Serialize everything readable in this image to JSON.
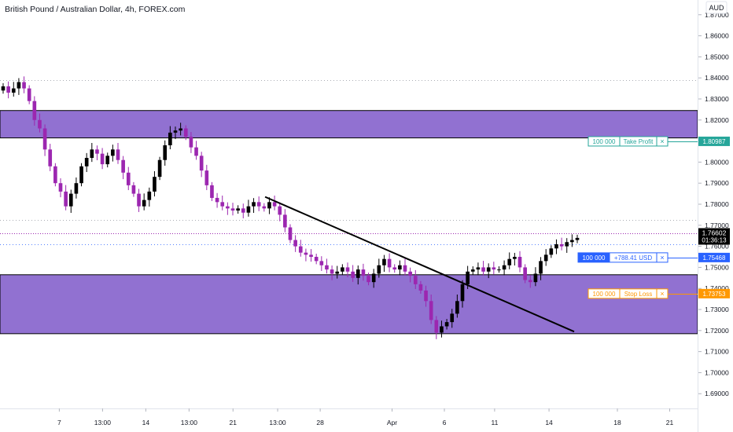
{
  "header": {
    "title": "British Pound / Australian Dollar, 4h, FOREX.com",
    "currency_badge": "AUD"
  },
  "colors": {
    "up_candle": "#000000",
    "down_candle": "#9c27b0",
    "zone_fill": "#8b69cf",
    "take_profit": "#26a69a",
    "stop_loss": "#ff9800",
    "position": "#2962ff",
    "price_tag": "#000000"
  },
  "chart_data": {
    "type": "candlestick",
    "instrument": "British Pound / Australian Dollar",
    "timeframe": "4h",
    "source": "FOREX.com",
    "y_axis": {
      "label": "AUD",
      "ylim": [
        1.683,
        1.877
      ],
      "ticks": [
        "1.87000",
        "1.86000",
        "1.85000",
        "1.84000",
        "1.83000",
        "1.82000",
        "1.81000",
        "1.80000",
        "1.79000",
        "1.78000",
        "1.77000",
        "1.76000",
        "1.75000",
        "1.74000",
        "1.73000",
        "1.72000",
        "1.71000",
        "1.70000",
        "1.69000"
      ]
    },
    "x_axis": {
      "ticks": [
        {
          "label": "7",
          "x": 0.085
        },
        {
          "label": "13:00",
          "x": 0.147
        },
        {
          "label": "14",
          "x": 0.209
        },
        {
          "label": "13:00",
          "x": 0.271
        },
        {
          "label": "21",
          "x": 0.334
        },
        {
          "label": "13:00",
          "x": 0.398
        },
        {
          "label": "28",
          "x": 0.459
        },
        {
          "label": "Apr",
          "x": 0.562
        },
        {
          "label": "6",
          "x": 0.637
        },
        {
          "label": "11",
          "x": 0.709
        },
        {
          "label": "14",
          "x": 0.787
        },
        {
          "label": "18",
          "x": 0.885
        },
        {
          "label": "21",
          "x": 0.96
        }
      ]
    },
    "closes": [
      1.836,
      1.833,
      1.835,
      1.838,
      1.835,
      1.829,
      1.82,
      1.816,
      1.806,
      1.798,
      1.79,
      1.786,
      1.779,
      1.785,
      1.79,
      1.798,
      1.802,
      1.806,
      1.804,
      1.799,
      1.803,
      1.806,
      1.801,
      1.795,
      1.789,
      1.785,
      1.779,
      1.782,
      1.786,
      1.793,
      1.801,
      1.808,
      1.814,
      1.815,
      1.816,
      1.812,
      1.807,
      1.803,
      1.796,
      1.789,
      1.783,
      1.781,
      1.779,
      1.778,
      1.777,
      1.778,
      1.776,
      1.779,
      1.781,
      1.779,
      1.778,
      1.781,
      1.779,
      1.775,
      1.769,
      1.763,
      1.76,
      1.757,
      1.756,
      1.755,
      1.753,
      1.751,
      1.749,
      1.747,
      1.748,
      1.75,
      1.748,
      1.745,
      1.749,
      1.746,
      1.743,
      1.747,
      1.751,
      1.754,
      1.75,
      1.749,
      1.751,
      1.748,
      1.746,
      1.742,
      1.739,
      1.734,
      1.725,
      1.719,
      1.722,
      1.724,
      1.728,
      1.734,
      1.742,
      1.748,
      1.749,
      1.75,
      1.748,
      1.75,
      1.749,
      1.749,
      1.751,
      1.754,
      1.755,
      1.75,
      1.744,
      1.743,
      1.747,
      1.753,
      1.756,
      1.759,
      1.761,
      1.76,
      1.762,
      1.763,
      1.764
    ],
    "zones": [
      {
        "name": "supply-zone",
        "from": 1.8115,
        "to": 1.8245
      },
      {
        "name": "demand-zone",
        "from": 1.7185,
        "to": 1.7465
      }
    ],
    "trendline": {
      "start": {
        "x": 0.38,
        "y": 1.7835
      },
      "end": {
        "x": 0.823,
        "y": 1.7195
      }
    },
    "reference_lines": [
      {
        "name": "resistance-dotted",
        "value": 1.839
      },
      {
        "name": "level-dotted",
        "value": 1.7725
      },
      {
        "name": "current-price-line",
        "value": 1.76602
      },
      {
        "name": "position-line",
        "value": 1.7608
      }
    ],
    "orders": [
      {
        "name": "take-profit",
        "qty": "100 000",
        "label": "Take Profit",
        "price": "1.80987",
        "value": 1.80987,
        "close_icon": "×"
      },
      {
        "name": "position",
        "qty": "100 000",
        "label": "+788.41 USD",
        "price": "1.75468",
        "value": 1.75468,
        "close_icon": "×"
      },
      {
        "name": "stop-loss",
        "qty": "100 000",
        "label": "Stop Loss",
        "price": "1.73753",
        "value": 1.73753,
        "close_icon": "×"
      }
    ],
    "current_price": {
      "value": 1.76602,
      "price": "1.76602",
      "countdown": "01:36:13"
    }
  }
}
